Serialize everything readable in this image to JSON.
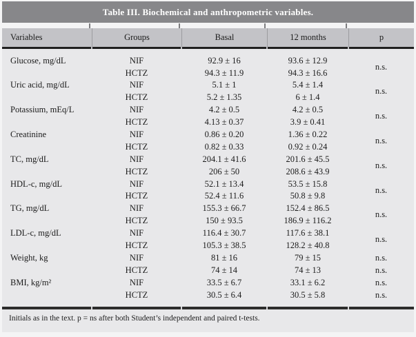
{
  "title": "Table III. Biochemical and anthropometric variables.",
  "columns": [
    "Variables",
    "Groups",
    "Basal",
    "12 months",
    "p"
  ],
  "rows": [
    {
      "variable": "Glucose, mg/dL",
      "group": "NIF",
      "basal": "92.9 ± 16",
      "months12": "93.6 ± 12.9",
      "p": "n.s.",
      "p_rows": 2
    },
    {
      "variable": "",
      "group": "HCTZ",
      "basal": "94.3 ± 11.9",
      "months12": "94.3 ± 16.6"
    },
    {
      "variable": "Uric acid, mg/dL",
      "group": "NIF",
      "basal": "5.1 ± 1",
      "months12": "5.4 ± 1.4",
      "p": "n.s.",
      "p_rows": 2
    },
    {
      "variable": "",
      "group": "HCTZ",
      "basal": "5.2 ± 1.35",
      "months12": "6 ± 1.4"
    },
    {
      "variable": "Potassium, mEq/L",
      "group": "NIF",
      "basal": "4.2 ± 0.5",
      "months12": "4.2 ± 0.5",
      "p": "n.s.",
      "p_rows": 2
    },
    {
      "variable": "",
      "group": "HCTZ",
      "basal": "4.13 ± 0.37",
      "months12": "3.9 ± 0.41"
    },
    {
      "variable": "Creatinine",
      "group": "NIF",
      "basal": "0.86 ± 0.20",
      "months12": "1.36 ± 0.22",
      "p": "n.s.",
      "p_rows": 2
    },
    {
      "variable": "",
      "group": "HCTZ",
      "basal": "0.82 ± 0.33",
      "months12": "0.92 ± 0.24"
    },
    {
      "variable": "TC, mg/dL",
      "group": "NIF",
      "basal": "204.1 ± 41.6",
      "months12": "201.6 ± 45.5",
      "p": "n.s.",
      "p_rows": 2
    },
    {
      "variable": "",
      "group": "HCTZ",
      "basal": "206 ± 50",
      "months12": "208.6 ± 43.9"
    },
    {
      "variable": "HDL-c, mg/dL",
      "group": "NIF",
      "basal": "52.1 ± 13.4",
      "months12": "53.5 ± 15.8",
      "p": "n.s.",
      "p_rows": 2
    },
    {
      "variable": "",
      "group": "HCTZ",
      "basal": "52.4 ± 11.6",
      "months12": "50.8 ± 9.8"
    },
    {
      "variable": "TG, mg/dL",
      "group": "NIF",
      "basal": "155.3 ± 66.7",
      "months12": "152.4 ± 86.5",
      "p": "n.s.",
      "p_rows": 2
    },
    {
      "variable": "",
      "group": "HCTZ",
      "basal": "150 ± 93.5",
      "months12": "186.9 ± 116.2"
    },
    {
      "variable": "LDL-c, mg/dL",
      "group": "NIF",
      "basal": "116.4 ± 30.7",
      "months12": "117.6 ± 38.1",
      "p": "n.s.",
      "p_rows": 2
    },
    {
      "variable": "",
      "group": "HCTZ",
      "basal": "105.3 ± 38.5",
      "months12": "128.2 ± 40.8"
    },
    {
      "variable": "Weight, kg",
      "group": "NIF",
      "basal": "81 ± 16",
      "months12": "79 ± 15",
      "p": "n.s.",
      "p_rows": 1
    },
    {
      "variable": "",
      "group": "HCTZ",
      "basal": "74 ± 14",
      "months12": "74 ± 13",
      "p": "n.s.",
      "p_rows": 1
    },
    {
      "variable": "BMI, kg/m²",
      "group": "NIF",
      "basal": "33.5 ± 6.7",
      "months12": "33.1 ± 6.2",
      "p": "n.s.",
      "p_rows": 1
    },
    {
      "variable": "",
      "group": "HCTZ",
      "basal": "30.5 ± 6.4",
      "months12": "30.5 ± 5.8",
      "p": "n.s.",
      "p_rows": 1
    }
  ],
  "footnote": "Initials as in the text. p = ns after both Student’s independent and paired t-tests.",
  "colors": {
    "page_bg": "#f4f4f5",
    "title_bar_bg": "#87878a",
    "title_text": "#ffffff",
    "header_bg": "#c3c3c7",
    "body_bg": "#e8e8ea",
    "rule_dark": "#1f1f1f",
    "text": "#1b1b1b"
  }
}
